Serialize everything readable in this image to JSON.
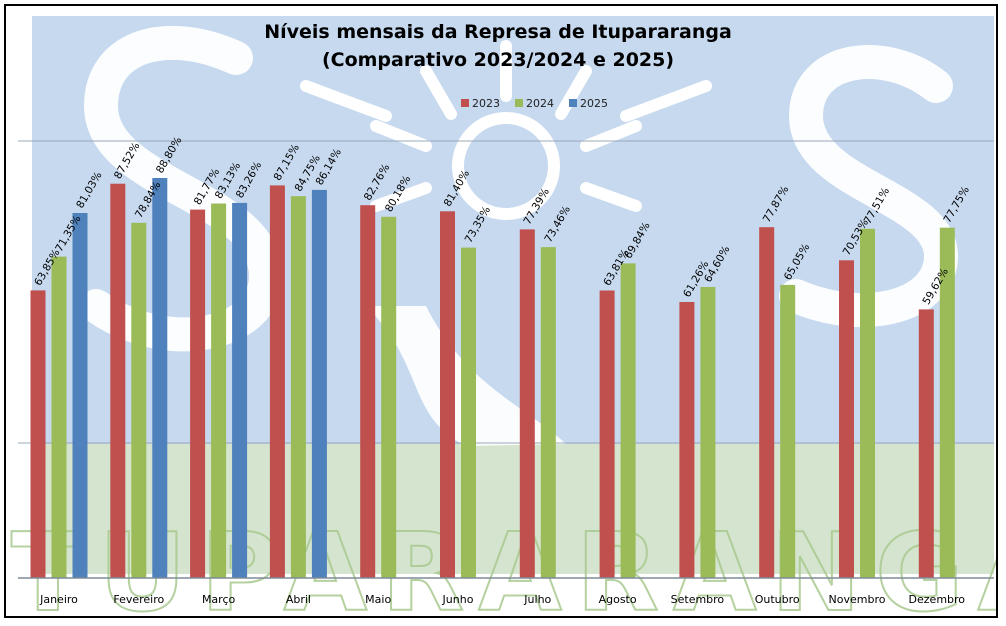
{
  "chart_data": {
    "type": "bar",
    "title": "Níveis mensais da Represa de Itupararanga",
    "subtitle": "(Comparativo 2023/2024 e 2025)",
    "categories": [
      "Janeiro",
      "Fevereiro",
      "Março",
      "Abril",
      "Maio",
      "Junho",
      "Julho",
      "Agosto",
      "Setembro",
      "Outubro",
      "Novembro",
      "Dezembro"
    ],
    "series": [
      {
        "name": "2023",
        "color": "#c0504d",
        "values": [
          63.85,
          87.52,
          81.77,
          87.15,
          82.76,
          81.4,
          77.39,
          63.81,
          61.26,
          77.87,
          70.53,
          59.62
        ],
        "labels": [
          "63,85%",
          "87,52%",
          "81,77%",
          "87,15%",
          "82,76%",
          "81,40%",
          "77,39%",
          "63,81%",
          "61,26%",
          "77,87%",
          "70,53%",
          "59,62%"
        ]
      },
      {
        "name": "2024",
        "color": "#9bbb59",
        "values": [
          71.35,
          78.84,
          83.13,
          84.75,
          80.18,
          73.35,
          73.46,
          69.84,
          64.6,
          65.05,
          77.51,
          77.75
        ],
        "labels": [
          "71,35%",
          "78,84%",
          "83,13%",
          "84,75%",
          "80,18%",
          "73,35%",
          "73,46%",
          "69,84%",
          "64,60%",
          "65,05%",
          "77,51%",
          "77,75%"
        ]
      },
      {
        "name": "2025",
        "color": "#4f81bd",
        "values": [
          81.03,
          88.8,
          83.26,
          86.14,
          null,
          null,
          null,
          null,
          null,
          null,
          null,
          null
        ],
        "labels": [
          "81,03%",
          "88,80%",
          "83,26%",
          "86,14%",
          "",
          "",
          "",
          "",
          "",
          "",
          "",
          ""
        ]
      }
    ],
    "legend_position": "top-center",
    "grid": true,
    "watermark": "SAAE Itupararanga logo",
    "watermark_text": "ITUPARARANGA",
    "background_color": "#c6d9ef",
    "background_color_lower": "#d6e5cf"
  }
}
